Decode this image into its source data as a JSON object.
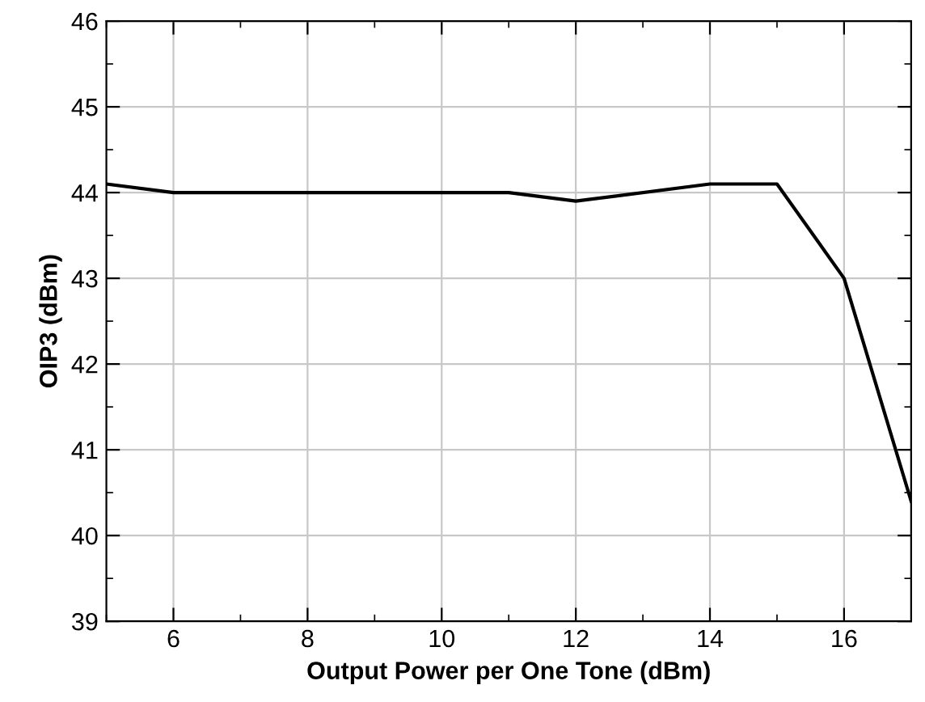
{
  "chart_data": {
    "type": "line",
    "xlabel": "Output Power per One Tone (dBm)",
    "ylabel": "OIP3 (dBm)",
    "x": [
      5,
      6,
      11,
      12,
      14,
      15,
      16,
      17
    ],
    "series": [
      {
        "color": "#000000",
        "values": [
          44.1,
          44.0,
          44.0,
          43.9,
          44.1,
          44.1,
          43.0,
          40.4
        ]
      }
    ],
    "xlim": [
      5,
      17
    ],
    "ylim": [
      39,
      46
    ],
    "xticks": [
      6,
      8,
      10,
      12,
      14,
      16
    ],
    "yticks": [
      39,
      40,
      41,
      42,
      43,
      44,
      45,
      46
    ],
    "grid": true,
    "marker": "none",
    "line_style": "solid",
    "legend": false
  }
}
